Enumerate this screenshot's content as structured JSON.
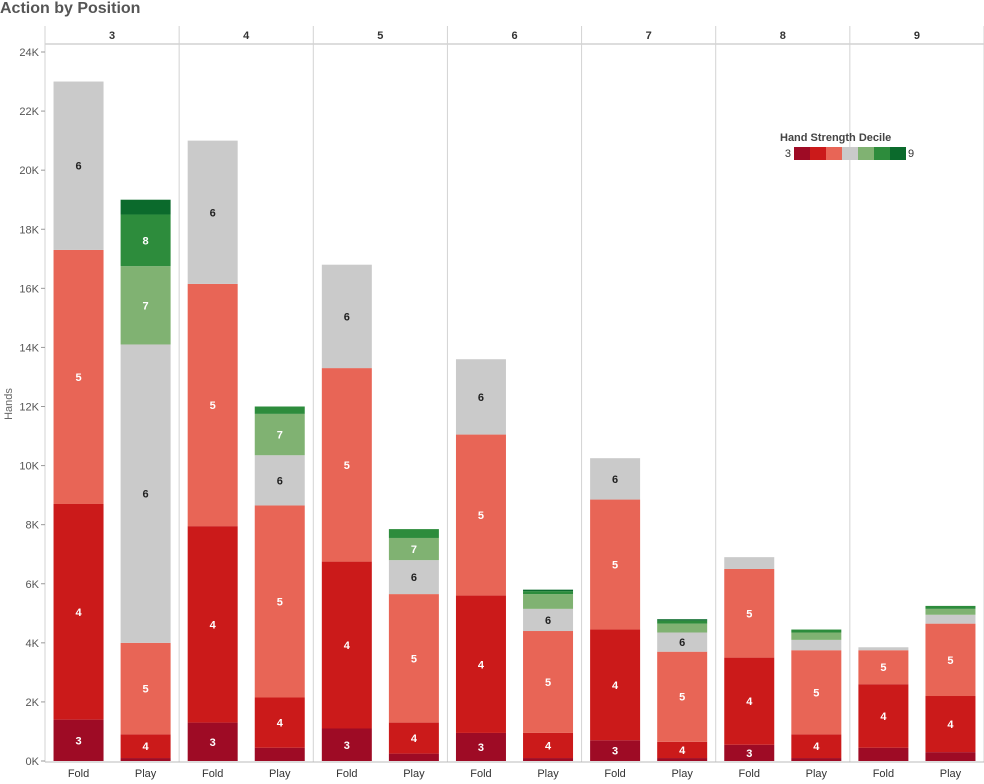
{
  "title": "Action by Position",
  "chart_data": {
    "type": "bar",
    "stacked": true,
    "title": "Action by Position",
    "ylabel": "Hands",
    "xlabel": "",
    "ylim": [
      0,
      24000
    ],
    "y_ticks": [
      "0K",
      "2K",
      "4K",
      "6K",
      "8K",
      "10K",
      "12K",
      "14K",
      "16K",
      "18K",
      "20K",
      "22K",
      "24K"
    ],
    "grid": false,
    "legend": {
      "title": "Hand Strength Decile",
      "placement": "top-right",
      "min_label": "3",
      "max_label": "9"
    },
    "colors": {
      "3": "#9e0b25",
      "4": "#cb1a1a",
      "5": "#e86556",
      "6": "#cacaca",
      "7": "#80b272",
      "8": "#2d8c3c",
      "9": "#0b6a2c"
    },
    "legend_colors": [
      "#9e0b25",
      "#cb1a1a",
      "#e86556",
      "#cacaca",
      "#80b272",
      "#2d8c3c",
      "#0b6a2c"
    ],
    "positions": [
      "3",
      "4",
      "5",
      "6",
      "7",
      "8",
      "9"
    ],
    "actions": [
      "Fold",
      "Play"
    ],
    "deciles": [
      "3",
      "4",
      "5",
      "6",
      "7",
      "8",
      "9"
    ],
    "bars": [
      {
        "position": "3",
        "action": "Fold",
        "values": [
          1400,
          7300,
          8600,
          5700,
          0,
          0,
          0
        ]
      },
      {
        "position": "3",
        "action": "Play",
        "values": [
          100,
          800,
          3100,
          10100,
          2650,
          1750,
          500
        ]
      },
      {
        "position": "4",
        "action": "Fold",
        "values": [
          1300,
          6650,
          8200,
          4850,
          0,
          0,
          0
        ]
      },
      {
        "position": "4",
        "action": "Play",
        "values": [
          450,
          1700,
          6500,
          1700,
          1400,
          250,
          0
        ]
      },
      {
        "position": "5",
        "action": "Fold",
        "values": [
          1100,
          5650,
          6550,
          3500,
          0,
          0,
          0
        ]
      },
      {
        "position": "5",
        "action": "Play",
        "values": [
          250,
          1050,
          4350,
          1150,
          750,
          300,
          0
        ]
      },
      {
        "position": "6",
        "action": "Fold",
        "values": [
          950,
          4650,
          5450,
          2550,
          0,
          0,
          0
        ]
      },
      {
        "position": "6",
        "action": "Play",
        "values": [
          100,
          850,
          3450,
          750,
          500,
          100,
          50
        ]
      },
      {
        "position": "7",
        "action": "Fold",
        "values": [
          700,
          3750,
          4400,
          1400,
          0,
          0,
          0
        ]
      },
      {
        "position": "7",
        "action": "Play",
        "values": [
          100,
          550,
          3050,
          650,
          300,
          100,
          50
        ]
      },
      {
        "position": "8",
        "action": "Fold",
        "values": [
          550,
          2950,
          3000,
          400,
          0,
          0,
          0
        ]
      },
      {
        "position": "8",
        "action": "Play",
        "values": [
          100,
          800,
          2850,
          350,
          250,
          100,
          0
        ]
      },
      {
        "position": "9",
        "action": "Fold",
        "values": [
          450,
          2150,
          1150,
          100,
          0,
          0,
          0
        ]
      },
      {
        "position": "9",
        "action": "Play",
        "values": [
          300,
          1900,
          2450,
          300,
          200,
          100,
          0
        ]
      }
    ]
  }
}
